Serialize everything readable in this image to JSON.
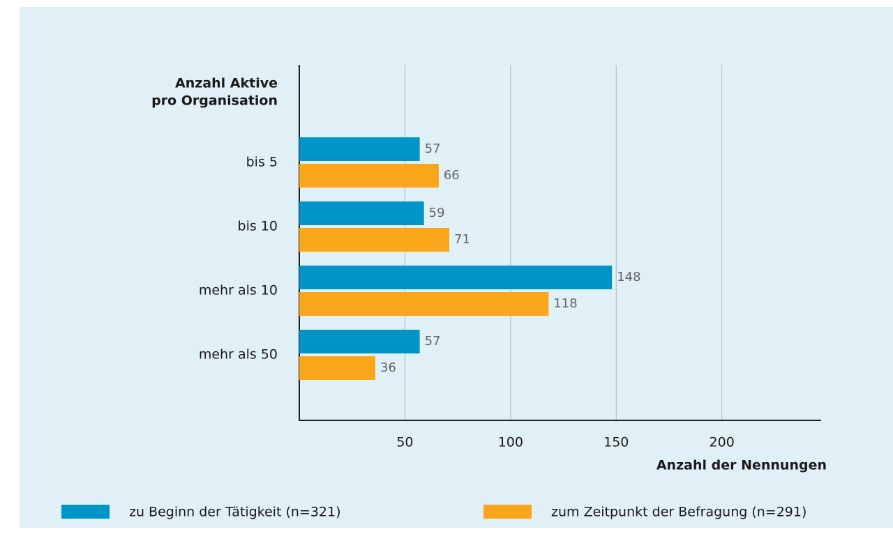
{
  "chart_data": {
    "type": "bar",
    "orientation": "horizontal",
    "ylabel": [
      "Anzahl Aktive",
      "pro Organisation"
    ],
    "xlabel": "Anzahl der Nennungen",
    "categories": [
      "bis 5",
      "bis 10",
      "mehr als 10",
      "mehr als 50"
    ],
    "series": [
      {
        "name": "zu Beginn der Tätigkeit (n=321)",
        "color": "#0095c9",
        "values": [
          57,
          59,
          148,
          57
        ]
      },
      {
        "name": "zum Zeitpunkt der Befragung (n=291)",
        "color": "#f9a61a",
        "values": [
          66,
          71,
          118,
          36
        ]
      }
    ],
    "xlim": [
      0,
      247
    ],
    "xticks": [
      50,
      100,
      150,
      200
    ],
    "grid": true,
    "legend": "bottom"
  }
}
